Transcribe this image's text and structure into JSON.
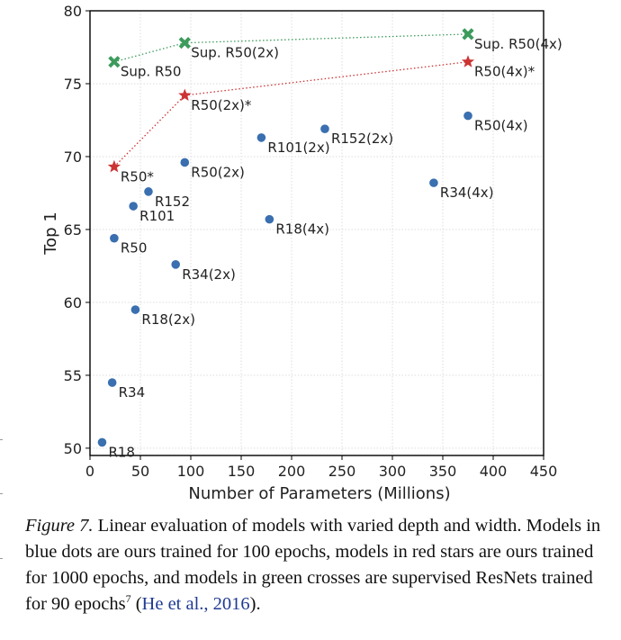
{
  "chart_data": {
    "type": "scatter",
    "title": "",
    "xlabel": "Number of Parameters (Millions)",
    "ylabel": "Top 1",
    "xlim": [
      0,
      450
    ],
    "ylim": [
      49.5,
      80
    ],
    "xticks": [
      "0",
      "50",
      "100",
      "150",
      "200",
      "250",
      "300",
      "350",
      "400",
      "450"
    ],
    "xtick_values": [
      0,
      50,
      100,
      150,
      200,
      250,
      300,
      350,
      400,
      450
    ],
    "yticks": [
      "50",
      "55",
      "60",
      "65",
      "70",
      "75",
      "80"
    ],
    "ytick_values": [
      50,
      55,
      60,
      65,
      70,
      75,
      80
    ],
    "grid": true,
    "series": [
      {
        "marker": "dot",
        "color": "#3a6fb0",
        "connected": false,
        "points": [
          {
            "label": "R18",
            "x": 12,
            "y": 50.4
          },
          {
            "label": "R34",
            "x": 22,
            "y": 54.5
          },
          {
            "label": "R50",
            "x": 24,
            "y": 64.4
          },
          {
            "label": "R101",
            "x": 43,
            "y": 66.6
          },
          {
            "label": "R152",
            "x": 58,
            "y": 67.6
          },
          {
            "label": "R18(2x)",
            "x": 45,
            "y": 59.5
          },
          {
            "label": "R34(2x)",
            "x": 85,
            "y": 62.6
          },
          {
            "label": "R50(2x)",
            "x": 94,
            "y": 69.6
          },
          {
            "label": "R101(2x)",
            "x": 170,
            "y": 71.3
          },
          {
            "label": "R152(2x)",
            "x": 233,
            "y": 71.9
          },
          {
            "label": "R18(4x)",
            "x": 178,
            "y": 65.7
          },
          {
            "label": "R34(4x)",
            "x": 341,
            "y": 68.2
          },
          {
            "label": "R50(4x)",
            "x": 375,
            "y": 72.8
          }
        ]
      },
      {
        "marker": "star",
        "color": "#cc3333",
        "connected": true,
        "points": [
          {
            "label": "R50*",
            "x": 24,
            "y": 69.3
          },
          {
            "label": "R50(2x)*",
            "x": 94,
            "y": 74.2
          },
          {
            "label": "R50(4x)*",
            "x": 375,
            "y": 76.5
          }
        ]
      },
      {
        "marker": "cross",
        "color": "#3d9b5c",
        "connected": true,
        "points": [
          {
            "label": "Sup. R50",
            "x": 24,
            "y": 76.5
          },
          {
            "label": "Sup. R50(2x)",
            "x": 94,
            "y": 77.8
          },
          {
            "label": "Sup. R50(4x)",
            "x": 375,
            "y": 78.4
          }
        ]
      }
    ]
  },
  "caption": {
    "figure_label": "Figure 7.",
    "text": " Linear evaluation of models with varied depth and width. Models in blue dots are ours trained for 100 epochs, models in red stars are ours trained for 1000 epochs, and models in green crosses are supervised ResNets trained for 90 epochs",
    "footnote": "7",
    "citation": "He et al., 2016",
    "cite_open": " (",
    "cite_close": ")."
  }
}
